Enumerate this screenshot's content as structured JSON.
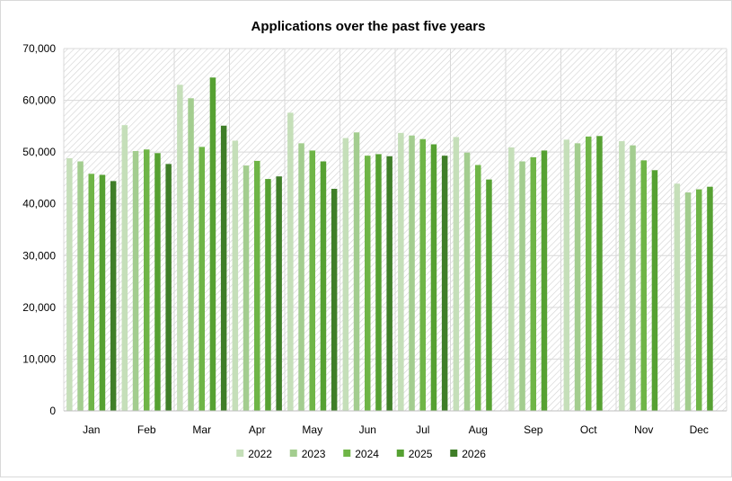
{
  "chart_data": {
    "type": "bar",
    "title": "Applications over the past five years",
    "xlabel": "",
    "ylabel": "",
    "categories": [
      "Jan",
      "Feb",
      "Mar",
      "Apr",
      "May",
      "Jun",
      "Jul",
      "Aug",
      "Sep",
      "Oct",
      "Nov",
      "Dec"
    ],
    "ylim": [
      0,
      70000
    ],
    "yticks": [
      0,
      10000,
      20000,
      30000,
      40000,
      50000,
      60000,
      70000
    ],
    "ytick_labels": [
      "0",
      "10,000",
      "20,000",
      "30,000",
      "40,000",
      "50,000",
      "60,000",
      "70,000"
    ],
    "grid": true,
    "legend_position": "bottom",
    "series": [
      {
        "name": "2022",
        "color": "#c5dfb9",
        "values": [
          48800,
          55200,
          63000,
          52200,
          57600,
          52700,
          53700,
          52900,
          50900,
          52400,
          52100,
          43900
        ]
      },
      {
        "name": "2023",
        "color": "#a3cd8f",
        "values": [
          48200,
          50200,
          60400,
          47400,
          51700,
          53800,
          53200,
          49900,
          48200,
          51700,
          51300,
          42200
        ]
      },
      {
        "name": "2024",
        "color": "#6fb547",
        "values": [
          45800,
          50500,
          51000,
          48300,
          50300,
          49300,
          52500,
          47500,
          49000,
          53000,
          48400,
          42800
        ]
      },
      {
        "name": "2025",
        "color": "#56a132",
        "values": [
          45600,
          49800,
          64400,
          44800,
          48200,
          49600,
          51500,
          44700,
          50300,
          53100,
          46500,
          43300
        ]
      },
      {
        "name": "2026",
        "color": "#3f7e28",
        "values": [
          44400,
          47700,
          55100,
          45300,
          42900,
          49200,
          49300,
          null,
          null,
          null,
          null,
          null
        ]
      }
    ]
  }
}
